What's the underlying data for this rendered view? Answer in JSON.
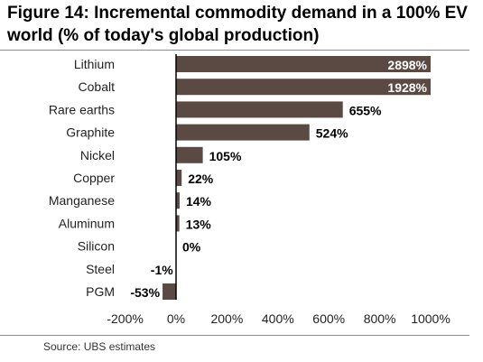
{
  "header": {
    "title": "Figure 14: Incremental commodity demand in a 100% EV world (% of today's global production)"
  },
  "footer": {
    "source": "Source: UBS estimates"
  },
  "colors": {
    "bar": "#5a4a43",
    "axis": "#000000",
    "rule": "#8c8c8c"
  },
  "chart_data": {
    "type": "bar",
    "orientation": "horizontal",
    "title": "Figure 14: Incremental commodity demand in a 100% EV world (% of today's global production)",
    "xlabel": "",
    "ylabel": "",
    "xlim": [
      -200,
      1000
    ],
    "x_ticks": [
      -200,
      0,
      200,
      400,
      600,
      800,
      1000
    ],
    "x_tick_labels": [
      "-200%",
      "0%",
      "200%",
      "400%",
      "600%",
      "800%",
      "1000%"
    ],
    "categories": [
      "Lithium",
      "Cobalt",
      "Rare earths",
      "Graphite",
      "Nickel",
      "Copper",
      "Manganese",
      "Aluminum",
      "Silicon",
      "Steel",
      "PGM"
    ],
    "values": [
      2898,
      1928,
      655,
      524,
      105,
      22,
      14,
      13,
      0,
      -1,
      -53
    ],
    "value_labels": [
      "2898%",
      "1928%",
      "655%",
      "524%",
      "105%",
      "22%",
      "14%",
      "13%",
      "0%",
      "-1%",
      "-53%"
    ],
    "grid": false,
    "legend": "none"
  }
}
